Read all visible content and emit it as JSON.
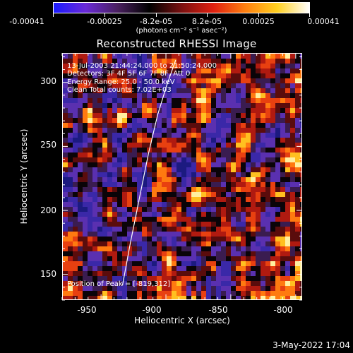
{
  "colorbar": {
    "tick_labels": [
      "-0.00041",
      "-0.00025",
      "-8.2e-05",
      "8.2e-05",
      "0.00025",
      "0.00041"
    ],
    "units": "(photons cm⁻² s⁻¹ asec⁻²)",
    "colors": [
      "#1a1aff",
      "#6a2ad8",
      "#4a2060",
      "#000000",
      "#7a1010",
      "#e02010",
      "#ff8010",
      "#ffd020",
      "#ffffff"
    ]
  },
  "title": "Reconstructed RHESSI Image",
  "annotations": {
    "time_range": "13-Jul-2003 21:44:24.000 to 21:50:24.000",
    "detectors": "Detectors: 3F 4F 5F 6F 7F 8F, Att 0",
    "energy": "Energy Range: 25.0 - 50.0 keV",
    "method": "Clean     Total counts: 7.02E+03",
    "peak": "Position of Peak = [-819,312]"
  },
  "x_axis": {
    "title": "Heliocentric X (arcsec)",
    "ticks": [
      "-950",
      "-900",
      "-850",
      "-800"
    ],
    "range": [
      -980,
      -795
    ]
  },
  "y_axis": {
    "title": "Heliocentric Y (arcsec)",
    "ticks": [
      "150",
      "200",
      "250",
      "300"
    ],
    "range": [
      130,
      323
    ]
  },
  "limb": {
    "points_x": [
      -934,
      -928,
      -921,
      -914,
      -907,
      -900,
      -893
    ],
    "points_y": [
      142,
      175,
      210,
      245,
      275,
      298,
      318
    ]
  },
  "footer": {
    "date": "3-May-2022 17:04"
  }
}
